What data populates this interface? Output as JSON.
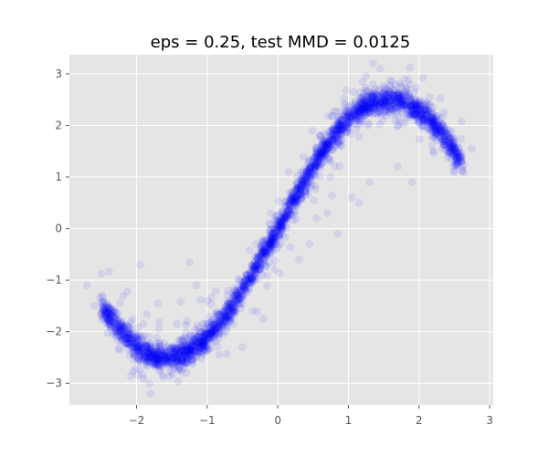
{
  "chart_data": {
    "type": "scatter",
    "title": "eps = 0.25, test MMD = 0.0125",
    "xlabel": "",
    "ylabel": "",
    "xlim": [
      -2.95,
      3.05
    ],
    "ylim": [
      -3.42,
      3.37
    ],
    "xticks": [
      -2,
      -1,
      0,
      1,
      2,
      3
    ],
    "yticks": [
      -3,
      -2,
      -1,
      0,
      1,
      2,
      3
    ],
    "grid": true,
    "background": "#e5e5e5",
    "grid_color": "#ffffff",
    "point_color": "#0000ff",
    "point_alpha": 0.08,
    "series": [
      {
        "curve": "y = 2.5*sin(x)",
        "x_range": [
          -2.5,
          2.6
        ],
        "n_points": 3000,
        "noise_sd_y": 0.12,
        "outliers": [
          [
            -2.7,
            -1.1
          ],
          [
            -2.5,
            -0.88
          ],
          [
            -2.6,
            -1.5
          ],
          [
            -1.95,
            -0.7
          ],
          [
            -1.9,
            -1.85
          ],
          [
            -1.7,
            -1.45
          ],
          [
            -1.25,
            -0.65
          ],
          [
            -1.15,
            -1.1
          ],
          [
            -1.8,
            -3.2
          ],
          [
            -1.0,
            -1.4
          ],
          [
            -0.7,
            -1.2
          ],
          [
            -0.35,
            -1.6
          ],
          [
            -0.2,
            -1.75
          ],
          [
            0.55,
            0.2
          ],
          [
            0.7,
            0.3
          ],
          [
            0.85,
            -0.1
          ],
          [
            1.05,
            0.6
          ],
          [
            1.15,
            0.5
          ],
          [
            1.3,
            0.9
          ],
          [
            1.35,
            2.8
          ],
          [
            1.45,
            3.1
          ],
          [
            1.2,
            2.85
          ],
          [
            1.7,
            1.2
          ],
          [
            1.9,
            0.9
          ],
          [
            2.2,
            1.5
          ],
          [
            2.5,
            1.1
          ],
          [
            2.75,
            1.55
          ],
          [
            2.6,
            1.3
          ],
          [
            1.0,
            2.3
          ],
          [
            0.9,
            1.6
          ],
          [
            0.3,
            -0.6
          ],
          [
            0.45,
            -0.3
          ],
          [
            -0.5,
            -2.3
          ],
          [
            -1.4,
            -2.75
          ],
          [
            -2.1,
            -2.45
          ],
          [
            -0.1,
            0.3
          ],
          [
            0.15,
            1.1
          ],
          [
            0.6,
            1.8
          ],
          [
            1.8,
            2.9
          ],
          [
            2.35,
            2.25
          ]
        ]
      }
    ]
  }
}
